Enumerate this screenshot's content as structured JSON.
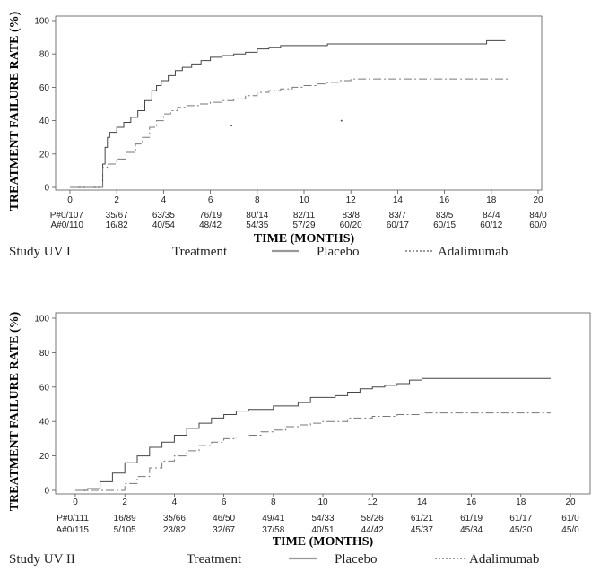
{
  "chart_data": [
    {
      "type": "line",
      "study_label": "Study UV I",
      "xlabel": "TIME (MONTHS)",
      "ylabel": "TREATMENT FAILURE RATE (%)",
      "xlim": [
        -1,
        20.5
      ],
      "ylim": [
        0,
        100
      ],
      "x_ticks": [
        0,
        2,
        4,
        6,
        8,
        10,
        12,
        14,
        16,
        18,
        20
      ],
      "y_ticks": [
        0,
        20,
        40,
        60,
        80,
        100
      ],
      "legend": {
        "title": "Treatment",
        "placebo": "Placebo",
        "adalimumab": "Adalimumab"
      },
      "series": [
        {
          "name": "Placebo",
          "x": [
            0,
            1.3,
            1.4,
            1.5,
            1.6,
            1.7,
            2.0,
            2.3,
            2.6,
            2.9,
            3.2,
            3.5,
            3.7,
            3.9,
            4.2,
            4.5,
            4.8,
            5.2,
            5.6,
            6.0,
            6.5,
            7.0,
            7.5,
            8.0,
            8.5,
            9.0,
            10.0,
            11.0,
            12.0,
            14.0,
            16.0,
            17.0,
            17.8,
            18.6
          ],
          "y": [
            0,
            0,
            14,
            24,
            30,
            33,
            36,
            39,
            42,
            46,
            52,
            58,
            61,
            64,
            67,
            70,
            72,
            74,
            76,
            78,
            79,
            80,
            81,
            83,
            84,
            85,
            85,
            86,
            86,
            86,
            86,
            86,
            88,
            88
          ]
        },
        {
          "name": "Adalimumab",
          "x": [
            0,
            1.3,
            1.4,
            1.6,
            2.0,
            2.4,
            2.8,
            3.1,
            3.4,
            3.7,
            4.0,
            4.3,
            4.6,
            5.0,
            5.5,
            6.0,
            6.5,
            7.0,
            7.5,
            8.0,
            8.5,
            9.0,
            9.5,
            10.0,
            10.5,
            11.0,
            11.5,
            12.0,
            14.0,
            16.0,
            18.0,
            18.7
          ],
          "y": [
            0,
            0,
            12,
            14,
            17,
            21,
            26,
            30,
            36,
            40,
            44,
            46,
            48,
            49,
            50,
            51,
            52,
            53,
            55,
            57,
            58,
            59,
            60,
            61,
            62,
            63,
            64,
            65,
            65,
            65,
            65,
            65
          ]
        }
      ],
      "points": [
        {
          "x": 6.9,
          "y": 37
        },
        {
          "x": 11.6,
          "y": 40
        }
      ],
      "risk_table": {
        "rows": [
          {
            "label": "P#0/107",
            "values": [
              "35/67",
              "63/35",
              "76/19",
              "80/14",
              "82/11",
              "83/8",
              "83/7",
              "83/5",
              "84/4",
              "84/0"
            ]
          },
          {
            "label": "A#0/110",
            "values": [
              "16/82",
              "40/54",
              "48/42",
              "54/35",
              "57/29",
              "60/20",
              "60/17",
              "60/15",
              "60/12",
              "60/0"
            ]
          }
        ]
      }
    },
    {
      "type": "line",
      "study_label": "Study UV II",
      "xlabel": "TIME (MONTHS)",
      "ylabel": "TREATMENT FAILURE RATE (%)",
      "xlim": [
        -1,
        21
      ],
      "ylim": [
        0,
        100
      ],
      "x_ticks": [
        0,
        2,
        4,
        6,
        8,
        10,
        12,
        14,
        16,
        18,
        20
      ],
      "y_ticks": [
        0,
        20,
        40,
        60,
        80,
        100
      ],
      "legend": {
        "title": "Treatment",
        "placebo": "Placebo",
        "adalimumab": "Adalimumab"
      },
      "series": [
        {
          "name": "Placebo",
          "x": [
            0,
            0.5,
            1.0,
            1.5,
            2.0,
            2.5,
            3.0,
            3.5,
            4.0,
            4.5,
            5.0,
            5.5,
            6.0,
            6.5,
            7.0,
            8.0,
            9.0,
            9.5,
            10.5,
            11.0,
            11.5,
            12.0,
            12.5,
            13.0,
            13.5,
            14.0,
            16.0,
            18.0,
            19.2
          ],
          "y": [
            0,
            1,
            5,
            10,
            16,
            20,
            25,
            28,
            32,
            36,
            39,
            42,
            44,
            46,
            47,
            49,
            51,
            54,
            55,
            57,
            59,
            60,
            61,
            62,
            64,
            65,
            65,
            65,
            65
          ]
        },
        {
          "name": "Adalimumab",
          "x": [
            0,
            1.5,
            2.0,
            2.5,
            3.0,
            3.5,
            4.0,
            4.5,
            5.0,
            5.5,
            6.0,
            6.5,
            7.0,
            7.5,
            8.0,
            8.5,
            9.0,
            9.5,
            10.0,
            11.0,
            12.0,
            13.0,
            14.0,
            16.0,
            18.0,
            19.2
          ],
          "y": [
            0,
            0,
            4,
            8,
            13,
            17,
            20,
            23,
            26,
            28,
            30,
            31,
            32,
            34,
            35,
            37,
            38,
            39,
            40,
            42,
            43,
            44,
            45,
            45,
            45,
            45
          ]
        }
      ],
      "points": [],
      "risk_table": {
        "rows": [
          {
            "label": "P#0/111",
            "values": [
              "16/89",
              "35/66",
              "46/50",
              "49/41",
              "54/33",
              "58/26",
              "61/21",
              "61/19",
              "61/17",
              "61/0"
            ]
          },
          {
            "label": "A#0/115",
            "values": [
              "5/105",
              "23/82",
              "32/67",
              "37/58",
              "40/51",
              "44/42",
              "45/37",
              "45/34",
              "45/30",
              "45/0"
            ]
          }
        ]
      }
    }
  ]
}
